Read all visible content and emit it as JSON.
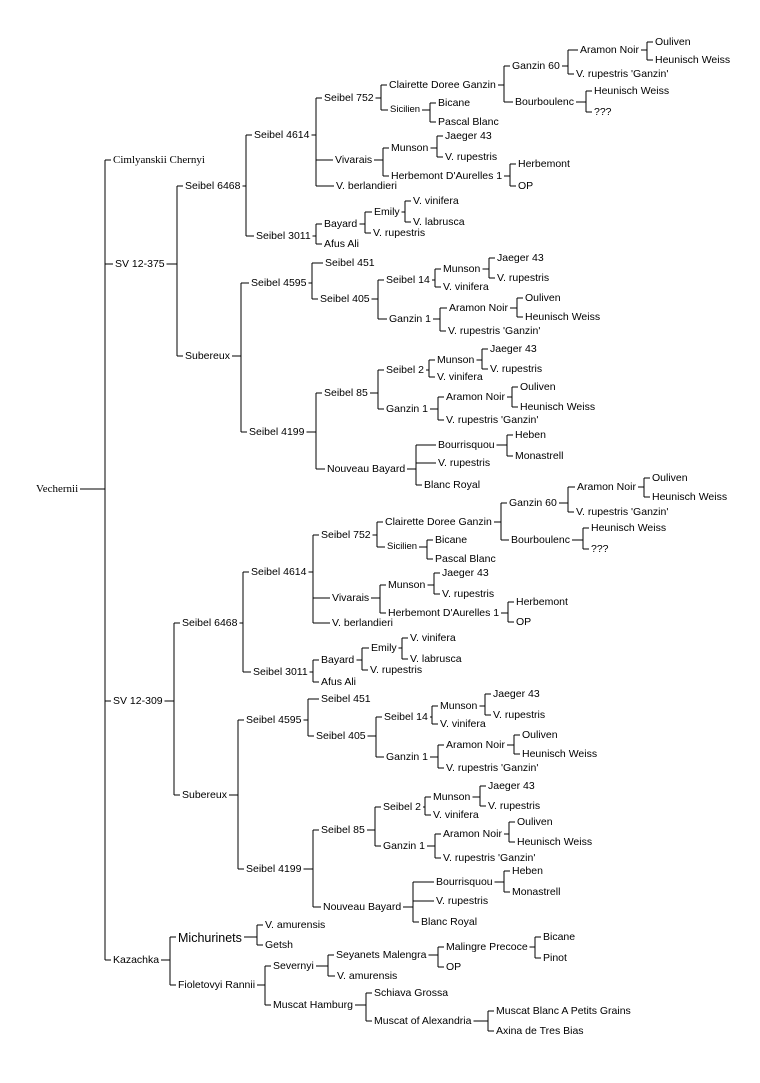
{
  "root": "Vechernii",
  "labels": {
    "c_cimlyanskii": "Cimlyanskii Chernyi",
    "c_sv12375": "SV 12-375",
    "c_s6468a": "Seibel 6468",
    "c_s4614a": "Seibel 4614",
    "c_s752a": "Seibel 752",
    "c_cdga": "Clairette Doree Ganzin",
    "c_g60a": "Ganzin 60",
    "c_arnoir1": "Aramon Noir",
    "c_ouliven1": "Ouliven",
    "c_heun1": "Heunisch Weiss",
    "c_vrg1": "V. rupestris 'Ganzin'",
    "c_bourb1": "Bourboulenc",
    "c_heun2": "Heunisch Weiss",
    "c_q1": "???",
    "c_sicil1": "Sicilien",
    "c_bicane1": "Bicane",
    "c_pascal1": "Pascal Blanc",
    "c_vivar1": "Vivarais",
    "c_munson1": "Munson",
    "c_jaeger1": "Jaeger 43",
    "c_vrup1": "V. rupestris",
    "c_hda1": "Herbemont D'Aurelles 1",
    "c_herb1": "Herbemont",
    "c_op1": "OP",
    "c_vberl1": "V. berlandieri",
    "c_s3011a": "Seibel 3011",
    "c_bayard1": "Bayard",
    "c_emily1": "Emily",
    "c_vvin1": "V. vinifera",
    "c_vlab1": "V. labrusca",
    "c_vrup2": "V. rupestris",
    "c_afus1": "Afus Ali",
    "c_subA": "Subereux",
    "c_s4595a": "Seibel 4595",
    "c_s451a": "Seibel 451",
    "c_s405a": "Seibel 405",
    "c_s14a": "Seibel 14",
    "c_munson2": "Munson",
    "c_jaeger2": "Jaeger 43",
    "c_vrup3": "V. rupestris",
    "c_vvin2": "V. vinifera",
    "c_ganzin1a": "Ganzin 1",
    "c_arnoir2": "Aramon Noir",
    "c_ouliven2": "Ouliven",
    "c_heun3": "Heunisch Weiss",
    "c_vrg2": "V. rupestris 'Ganzin'",
    "c_s4199a": "Seibel 4199",
    "c_s85a": "Seibel 85",
    "c_s2a": "Seibel 2",
    "c_munson3": "Munson",
    "c_jaeger3": "Jaeger 43",
    "c_vrup4": "V. rupestris",
    "c_vvin3": "V. vinifera",
    "c_ganzin1b": "Ganzin 1",
    "c_arnoir3": "Aramon Noir",
    "c_ouliven3": "Ouliven",
    "c_heun4": "Heunisch Weiss",
    "c_vrg3": "V. rupestris 'Ganzin'",
    "c_nbayard1": "Nouveau Bayard",
    "c_bourr1": "Bourrisquou",
    "c_heben1": "Heben",
    "c_monas1": "Monastrell",
    "c_vrup5": "V. rupestris",
    "c_blancr1": "Blanc Royal",
    "d_sv12309": "SV 12-309",
    "d_s6468b": "Seibel 6468",
    "d_s4614b": "Seibel 4614",
    "d_s752b": "Seibel 752",
    "d_cdgb": "Clairette Doree Ganzin",
    "d_g60b": "Ganzin 60",
    "d_arnoir4": "Aramon Noir",
    "d_ouliven4": "Ouliven",
    "d_heun5": "Heunisch Weiss",
    "d_vrg4": "V. rupestris 'Ganzin'",
    "d_bourb2": "Bourboulenc",
    "d_heun6": "Heunisch Weiss",
    "d_q2": "???",
    "d_sicil2": "Sicilien",
    "d_bicane2": "Bicane",
    "d_pascal2": "Pascal Blanc",
    "d_vivar2": "Vivarais",
    "d_munson4": "Munson",
    "d_jaeger4": "Jaeger 43",
    "d_vrup6": "V. rupestris",
    "d_hda2": "Herbemont D'Aurelles 1",
    "d_herb2": "Herbemont",
    "d_op2": "OP",
    "d_vberl2": "V. berlandieri",
    "d_s3011b": "Seibel 3011",
    "d_bayard2": "Bayard",
    "d_emily2": "Emily",
    "d_vvin4": "V. vinifera",
    "d_vlab2": "V. labrusca",
    "d_vrup7": "V. rupestris",
    "d_afus2": "Afus Ali",
    "d_subB": "Subereux",
    "d_s4595b": "Seibel 4595",
    "d_s451b": "Seibel 451",
    "d_s405b": "Seibel 405",
    "d_s14b": "Seibel 14",
    "d_munson5": "Munson",
    "d_jaeger5": "Jaeger 43",
    "d_vrup8": "V. rupestris",
    "d_vvin5": "V. vinifera",
    "d_ganzin1c": "Ganzin 1",
    "d_arnoir5": "Aramon Noir",
    "d_ouliven5": "Ouliven",
    "d_heun7": "Heunisch Weiss",
    "d_vrg5": "V. rupestris 'Ganzin'",
    "d_s4199b": "Seibel 4199",
    "d_s85b": "Seibel 85",
    "d_s2b": "Seibel 2",
    "d_munson6": "Munson",
    "d_jaeger6": "Jaeger 43",
    "d_vrup9": "V. rupestris",
    "d_vvin6": "V. vinifera",
    "d_ganzin1d": "Ganzin 1",
    "d_arnoir6": "Aramon Noir",
    "d_ouliven6": "Ouliven",
    "d_heun8": "Heunisch Weiss",
    "d_vrg6": "V. rupestris 'Ganzin'",
    "d_nbayard2": "Nouveau Bayard",
    "d_bourr2": "Bourrisquou",
    "d_heben2": "Heben",
    "d_monas2": "Monastrell",
    "d_vrup10": "V. rupestris",
    "d_blancr2": "Blanc Royal",
    "e_kaz": "Kazachka",
    "e_mich": "Michurinets",
    "e_vamur1": "V. amurensis",
    "e_getsh": "Getsh",
    "e_fiol": "Fioletovyi Rannii",
    "e_sev": "Severnyi",
    "e_seyan": "Seyanets Malengra",
    "e_malp": "Malingre Precoce",
    "e_bicane3": "Bicane",
    "e_pinot": "Pinot",
    "e_op3": "OP",
    "e_vamur2": "V. amurensis",
    "e_mham": "Muscat Hamburg",
    "e_schiava": "Schiava Grossa",
    "e_moa": "Muscat of Alexandria",
    "e_mbpg": "Muscat Blanc A Petits Grains",
    "e_axina": "Axina de Tres Bias"
  }
}
